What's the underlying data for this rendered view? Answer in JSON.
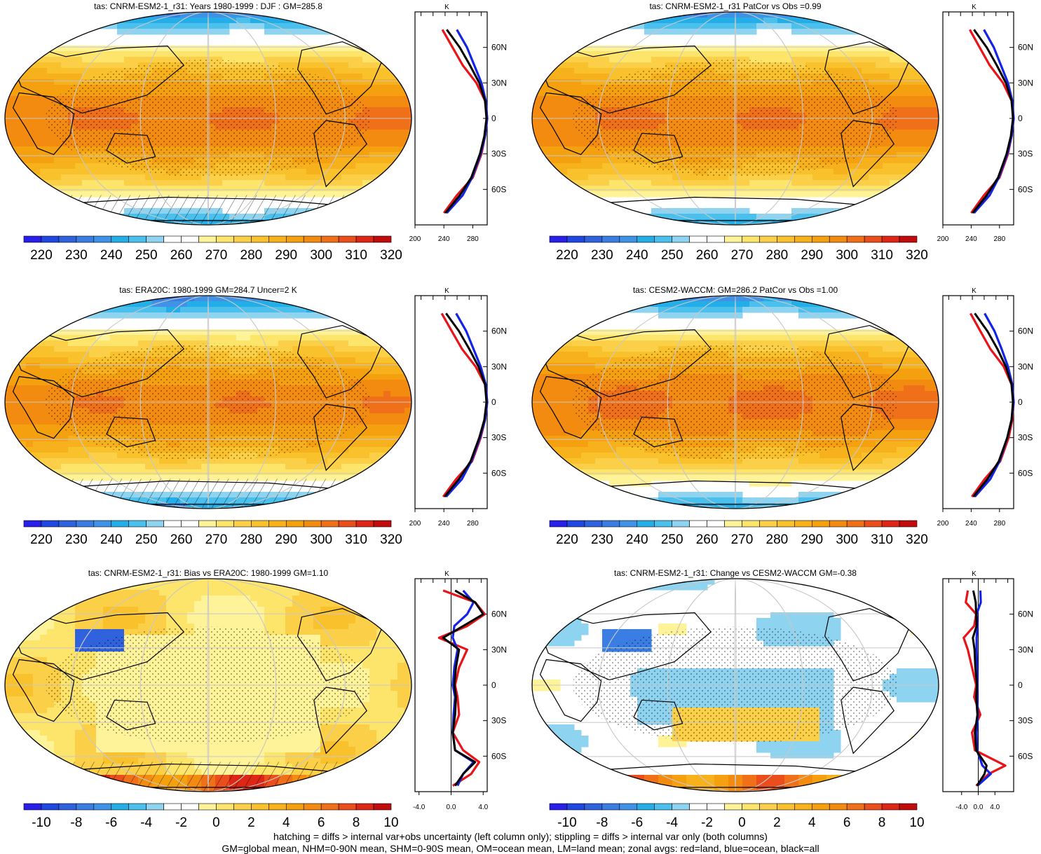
{
  "palette": [
    "#2a1fe8",
    "#2047e0",
    "#2f62dc",
    "#3a7ee3",
    "#3f92e6",
    "#24aee8",
    "#4cc0ec",
    "#8ed3f0",
    "#ffffff",
    "#ffffff",
    "#fff39a",
    "#fde46a",
    "#fbd048",
    "#f9c12c",
    "#f7b11c",
    "#f5a00f",
    "#f38b10",
    "#f0701a",
    "#ea4e1c",
    "#dd2616",
    "#c00c0c"
  ],
  "colorbars": {
    "abs": {
      "labels": [
        "220",
        "230",
        "240",
        "250",
        "260",
        "270",
        "280",
        "290",
        "300",
        "310",
        "320"
      ]
    },
    "diff": {
      "labels": [
        "-10",
        "-8",
        "-6",
        "-4",
        "-2",
        "0",
        "2",
        "4",
        "6",
        "8",
        "10"
      ]
    }
  },
  "profile_axes": {
    "lat_labels": [
      "60N",
      "30N",
      "0",
      "30S",
      "60S"
    ],
    "unit": "K",
    "abs_x_labels": [
      "200",
      "240",
      "280"
    ],
    "diff_x_labels": [
      "-4.0",
      "0.0",
      "4.0"
    ]
  },
  "legend_colors": {
    "land": "#e8141a",
    "ocean": "#1424e6",
    "all": "#000000"
  },
  "chart_data": [
    {
      "type": "heatmap",
      "title": "tas: CNRM-ESM2-1_r31: Years 1980-1999 : DJF : GM=285.8",
      "variable": "tas",
      "period": "1980-1999 DJF",
      "global_mean": 285.8,
      "zlim": [
        215,
        325
      ],
      "zonal_profile": {
        "lat": [
          -80,
          -65,
          -50,
          -30,
          -15,
          0,
          15,
          30,
          45,
          60,
          75
        ],
        "all": [
          242,
          262,
          278,
          290,
          296,
          299,
          297,
          289,
          276,
          262,
          244
        ],
        "land": [
          240,
          258,
          280,
          292,
          297,
          300,
          297,
          285,
          266,
          252,
          238
        ],
        "ocean": [
          244,
          266,
          279,
          291,
          297,
          300,
          298,
          292,
          282,
          272,
          258
        ]
      }
    },
    {
      "type": "heatmap",
      "title": "tas: CNRM-ESM2-1_r31 PatCor vs Obs =0.99",
      "variable": "tas",
      "pattern_correlation": 0.99,
      "zlim": [
        215,
        325
      ],
      "zonal_profile": {
        "lat": [
          -80,
          -65,
          -50,
          -30,
          -15,
          0,
          15,
          30,
          45,
          60,
          75
        ],
        "all": [
          242,
          262,
          278,
          290,
          296,
          299,
          297,
          289,
          276,
          262,
          244
        ],
        "land": [
          240,
          258,
          280,
          292,
          297,
          300,
          297,
          285,
          266,
          252,
          238
        ],
        "ocean": [
          244,
          266,
          279,
          291,
          297,
          300,
          298,
          292,
          282,
          272,
          258
        ]
      }
    },
    {
      "type": "heatmap",
      "title": "tas: ERA20C: 1980-1999 GM=284.7 Uncer=2 K",
      "variable": "tas",
      "period": "1980-1999",
      "global_mean": 284.7,
      "uncertainty_K": 2,
      "zlim": [
        215,
        325
      ],
      "zonal_profile": {
        "lat": [
          -80,
          -65,
          -50,
          -30,
          -15,
          0,
          15,
          30,
          45,
          60,
          75
        ],
        "all": [
          241,
          261,
          277,
          289,
          296,
          299,
          297,
          288,
          275,
          261,
          243
        ],
        "land": [
          239,
          257,
          279,
          291,
          297,
          300,
          297,
          284,
          265,
          251,
          237
        ],
        "ocean": [
          243,
          265,
          278,
          290,
          297,
          300,
          298,
          291,
          281,
          271,
          257
        ]
      }
    },
    {
      "type": "heatmap",
      "title": "tas: CESM2-WACCM: GM=286.2 PatCor vs Obs =1.00",
      "variable": "tas",
      "global_mean": 286.2,
      "pattern_correlation": 1.0,
      "zlim": [
        215,
        325
      ],
      "zonal_profile": {
        "lat": [
          -80,
          -65,
          -50,
          -30,
          -15,
          0,
          15,
          30,
          45,
          60,
          75
        ],
        "all": [
          243,
          263,
          279,
          291,
          297,
          299,
          297,
          289,
          277,
          263,
          245
        ],
        "land": [
          241,
          259,
          281,
          293,
          298,
          300,
          297,
          286,
          267,
          253,
          239
        ],
        "ocean": [
          245,
          267,
          280,
          291,
          297,
          300,
          298,
          292,
          283,
          273,
          259
        ]
      }
    },
    {
      "type": "heatmap",
      "title": "tas: CNRM-ESM2-1_r31: Bias vs ERA20C: 1980-1999 GM=1.10",
      "variable": "tas",
      "period": "1980-1999",
      "global_mean": 1.1,
      "zlim": [
        -11,
        11
      ],
      "zonal_profile": {
        "lat": [
          -85,
          -75,
          -65,
          -55,
          -40,
          -25,
          -10,
          0,
          15,
          30,
          40,
          50,
          60,
          70,
          80
        ],
        "all": [
          0.5,
          1.5,
          3.0,
          0.5,
          0.2,
          0.5,
          0.6,
          0.4,
          0.6,
          1.0,
          -1.0,
          1.5,
          4.0,
          3.0,
          0.5
        ],
        "land": [
          0.2,
          2.5,
          3.5,
          1.5,
          0.2,
          1.0,
          0.8,
          0.5,
          1.0,
          2.0,
          -1.5,
          2.0,
          4.2,
          3.0,
          -1.0
        ],
        "ocean": [
          0.8,
          1.5,
          2.8,
          0.5,
          0.2,
          0.3,
          0.5,
          0.2,
          0.4,
          0.8,
          0.2,
          0.4,
          2.0,
          2.8,
          1.5
        ]
      }
    },
    {
      "type": "heatmap",
      "title": "tas: CNRM-ESM2-1_r31: Change vs CESM2-WACCM GM=-0.38",
      "variable": "tas",
      "global_mean": -0.38,
      "zlim": [
        -11,
        11
      ],
      "zonal_profile": {
        "lat": [
          -85,
          -75,
          -68,
          -55,
          -40,
          -25,
          -10,
          0,
          15,
          30,
          40,
          50,
          60,
          70,
          80
        ],
        "all": [
          -0.3,
          1.5,
          2.0,
          -0.5,
          -0.8,
          -0.2,
          -0.5,
          -0.3,
          -0.7,
          -0.9,
          -1.3,
          -0.4,
          -0.5,
          -0.6,
          -1.2
        ],
        "land": [
          -0.5,
          2.5,
          6.5,
          -0.8,
          -1.5,
          0.5,
          -1.0,
          -0.5,
          -1.5,
          -2.5,
          -3.5,
          -1.0,
          -0.5,
          -3.0,
          -2.5
        ],
        "ocean": [
          -0.2,
          3.0,
          1.0,
          -0.3,
          -0.4,
          -0.1,
          -0.3,
          -0.2,
          -0.3,
          -0.4,
          -0.4,
          -0.2,
          -0.4,
          0.6,
          0.5
        ]
      }
    }
  ],
  "footer": {
    "line1": "hatching = diffs > internal var+obs uncertainty (left column only); stippling = diffs > internal var only (both columns)",
    "line2": "GM=global mean, NHM=0-90N mean, SHM=0-90S mean, OM=ocean mean, LM=land mean; zonal avgs: red=land, blue=ocean, black=all"
  }
}
